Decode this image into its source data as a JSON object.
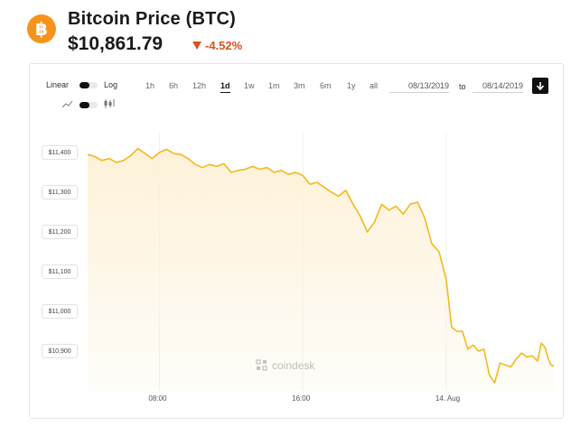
{
  "header": {
    "logo_glyph": "฿",
    "title": "Bitcoin Price (BTC)",
    "price": "$10,861.79",
    "change": "-4.52%",
    "change_color": "#d9531e",
    "logo_color": "#f7931a"
  },
  "controls": {
    "linear_label": "Linear",
    "log_label": "Log",
    "ranges": [
      "1h",
      "6h",
      "12h",
      "1d",
      "1w",
      "1m",
      "3m",
      "6m",
      "1y",
      "all"
    ],
    "active_range": "1d",
    "date_from": "08/13/2019",
    "to_label": "to",
    "date_to": "08/14/2019"
  },
  "watermark": "coindesk",
  "chart_data": {
    "type": "area",
    "line_color": "#f5b91d",
    "fill_color": "#fdf1d6",
    "grid": true,
    "ylim": [
      10800,
      11450
    ],
    "y_ticks": [
      "$11,400",
      "$11,300",
      "$11,200",
      "$11,100",
      "$11,000",
      "$10,900"
    ],
    "y_tick_values": [
      11400,
      11300,
      11200,
      11100,
      11000,
      10900
    ],
    "x_ticks": [
      "08:00",
      "16:00",
      "14. Aug"
    ],
    "x_tick_hours": [
      8,
      16,
      24
    ],
    "xlim_hours": [
      4,
      30
    ],
    "series": [
      {
        "values": [
          [
            4.0,
            11395
          ],
          [
            4.4,
            11390
          ],
          [
            4.8,
            11380
          ],
          [
            5.2,
            11385
          ],
          [
            5.6,
            11375
          ],
          [
            6.0,
            11380
          ],
          [
            6.4,
            11392
          ],
          [
            6.8,
            11410
          ],
          [
            7.2,
            11398
          ],
          [
            7.6,
            11385
          ],
          [
            8.0,
            11400
          ],
          [
            8.4,
            11408
          ],
          [
            8.8,
            11398
          ],
          [
            9.2,
            11395
          ],
          [
            9.6,
            11385
          ],
          [
            10.0,
            11370
          ],
          [
            10.4,
            11362
          ],
          [
            10.8,
            11370
          ],
          [
            11.2,
            11365
          ],
          [
            11.6,
            11372
          ],
          [
            12.0,
            11350
          ],
          [
            12.4,
            11355
          ],
          [
            12.8,
            11358
          ],
          [
            13.2,
            11365
          ],
          [
            13.6,
            11358
          ],
          [
            14.0,
            11362
          ],
          [
            14.4,
            11350
          ],
          [
            14.8,
            11355
          ],
          [
            15.2,
            11345
          ],
          [
            15.6,
            11350
          ],
          [
            16.0,
            11342
          ],
          [
            16.4,
            11320
          ],
          [
            16.8,
            11325
          ],
          [
            17.2,
            11312
          ],
          [
            17.6,
            11300
          ],
          [
            18.0,
            11290
          ],
          [
            18.4,
            11305
          ],
          [
            18.8,
            11270
          ],
          [
            19.2,
            11240
          ],
          [
            19.6,
            11200
          ],
          [
            20.0,
            11225
          ],
          [
            20.4,
            11270
          ],
          [
            20.8,
            11255
          ],
          [
            21.2,
            11265
          ],
          [
            21.6,
            11245
          ],
          [
            22.0,
            11270
          ],
          [
            22.4,
            11275
          ],
          [
            22.8,
            11235
          ],
          [
            23.2,
            11170
          ],
          [
            23.6,
            11150
          ],
          [
            24.0,
            11080
          ],
          [
            24.3,
            10960
          ],
          [
            24.6,
            10950
          ],
          [
            24.9,
            10950
          ],
          [
            25.2,
            10905
          ],
          [
            25.5,
            10915
          ],
          [
            25.8,
            10900
          ],
          [
            26.1,
            10905
          ],
          [
            26.4,
            10840
          ],
          [
            26.7,
            10820
          ],
          [
            27.0,
            10870
          ],
          [
            27.3,
            10865
          ],
          [
            27.6,
            10860
          ],
          [
            27.9,
            10880
          ],
          [
            28.2,
            10895
          ],
          [
            28.5,
            10885
          ],
          [
            28.8,
            10888
          ],
          [
            29.1,
            10875
          ],
          [
            29.3,
            10920
          ],
          [
            29.5,
            10910
          ],
          [
            29.7,
            10880
          ],
          [
            29.85,
            10865
          ],
          [
            30.0,
            10862
          ]
        ]
      }
    ]
  }
}
